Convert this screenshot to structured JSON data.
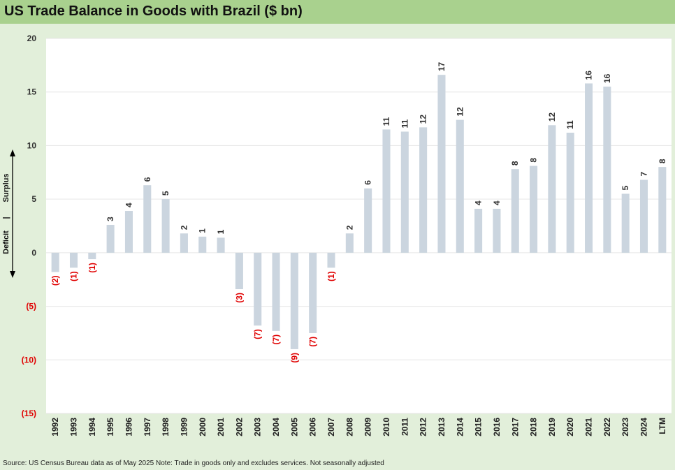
{
  "title": "US Trade Balance in Goods with Brazil ($ bn)",
  "source": "Source: US Census Bureau data as of May 2025 Note: Trade in goods only and excludes services. Not seasonally adjusted",
  "annotation": {
    "surplus": "Surplus",
    "separator": "|",
    "deficit": "Deficit"
  },
  "colors": {
    "bar": "#cbd5df",
    "positive_label": "#333333",
    "negative_label": "#e00000",
    "plot_bg": "#ffffff",
    "grid": "#e6e6e6"
  },
  "chart_data": {
    "type": "bar",
    "categories": [
      "1992",
      "1993",
      "1994",
      "1995",
      "1996",
      "1997",
      "1998",
      "1999",
      "2000",
      "2001",
      "2002",
      "2003",
      "2004",
      "2005",
      "2006",
      "2007",
      "2008",
      "2009",
      "2010",
      "2011",
      "2012",
      "2013",
      "2014",
      "2015",
      "2016",
      "2017",
      "2018",
      "2019",
      "2020",
      "2021",
      "2022",
      "2023",
      "2024",
      "LTM"
    ],
    "values": [
      -1.8,
      -1.4,
      -0.6,
      2.6,
      3.9,
      6.3,
      5.0,
      1.8,
      1.5,
      1.4,
      -3.4,
      -6.8,
      -7.3,
      -9.0,
      -7.5,
      -1.4,
      1.8,
      6.0,
      11.5,
      11.3,
      11.7,
      16.6,
      12.4,
      4.1,
      4.1,
      7.8,
      8.1,
      11.9,
      11.2,
      15.8,
      15.5,
      5.5,
      6.8,
      8.0
    ],
    "data_labels": [
      "(2)",
      "(1)",
      "(1)",
      "3",
      "4",
      "6",
      "5",
      "2",
      "1",
      "1",
      "(3)",
      "(7)",
      "(7)",
      "(9)",
      "(7)",
      "(1)",
      "2",
      "6",
      "11",
      "11",
      "12",
      "17",
      "12",
      "4",
      "4",
      "8",
      "8",
      "12",
      "11",
      "16",
      "16",
      "5",
      "7",
      "8"
    ],
    "y_ticks": [
      20,
      15,
      10,
      5,
      0,
      -5,
      -10,
      -15
    ],
    "y_tick_labels": [
      "20",
      "15",
      "10",
      "5",
      "0",
      "(5)",
      "(10)",
      "(15)"
    ],
    "ylim": [
      -15,
      20
    ],
    "grid": true,
    "legend": "none"
  }
}
